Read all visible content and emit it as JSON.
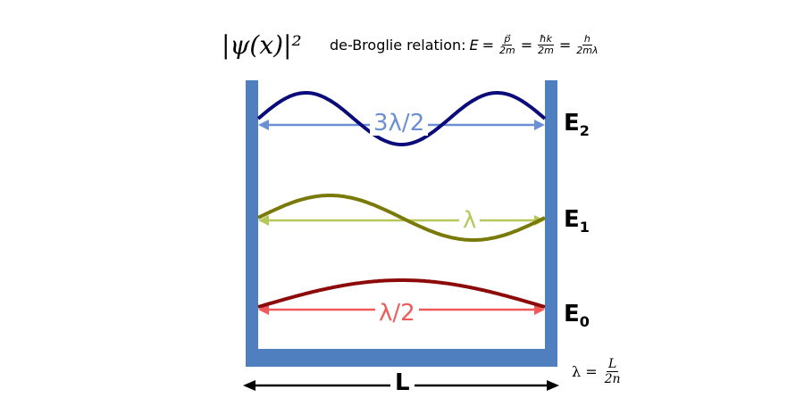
{
  "header": {
    "psi_label": "|ψ(x)|²",
    "relation_prefix": "de-Broglie relation:",
    "E": "E",
    "eq": "=",
    "f1_num": "p⃗",
    "f1_den": "2m",
    "f2_num": "ħk",
    "f2_den": "2m",
    "f3_num": "h",
    "f3_den": "2mλ"
  },
  "levels": [
    {
      "label": "E",
      "sub": "2",
      "wavelength_label": "3λ/2",
      "half_waves": 3,
      "wave_color": "#0b0b7a",
      "label_color": "#6c8fd6"
    },
    {
      "label": "E",
      "sub": "1",
      "wavelength_label": "λ",
      "half_waves": 2,
      "wave_color": "#7a7a0a",
      "label_color": "#b7c85a"
    },
    {
      "label": "E",
      "sub": "0",
      "wavelength_label": "λ/2",
      "half_waves": 1,
      "wave_color": "#8c0a0a",
      "label_color": "#f05a5a"
    }
  ],
  "well": {
    "color": "#4f7fbf",
    "width_label": "L"
  },
  "formula": {
    "lhs": "λ =",
    "num": "L",
    "den": "2n"
  }
}
